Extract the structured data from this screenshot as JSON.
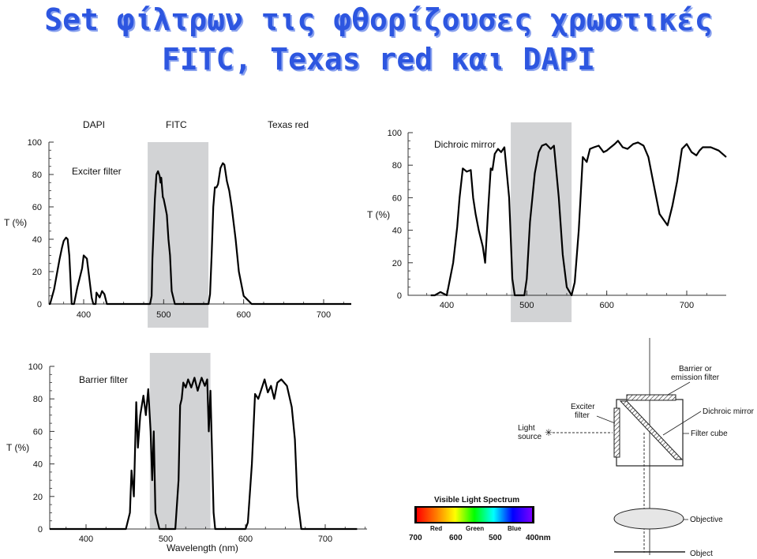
{
  "title_line1": "Set φίλτρων τις φθορίζουσες χρωστικές",
  "title_line2": "FITC, Texas red και DAPI",
  "chart_data": [
    {
      "type": "line",
      "panel": "exciter",
      "dyes": [
        "DAPI",
        "FITC",
        "Texas red"
      ],
      "series_label": "Exciter filter",
      "ylabel": "T (%)",
      "y_ticks": [
        "100",
        "80",
        "60",
        "40",
        "20",
        "0"
      ],
      "x_ticks": [
        "400",
        "500",
        "600",
        "700"
      ],
      "xlim": [
        360,
        740
      ],
      "ylim": [
        0,
        100
      ],
      "shaded_band": [
        480,
        556
      ],
      "series": [
        {
          "x": [
            350,
            358,
            363,
            367,
            370,
            373,
            375,
            378,
            380,
            382,
            385,
            386,
            388,
            392,
            398,
            400,
            404,
            410,
            412,
            415,
            416,
            420,
            423,
            426,
            429,
            432,
            435,
            440,
            444,
            448,
            454,
            460,
            466,
            472,
            478,
            483,
            485,
            486,
            489,
            491,
            493,
            495,
            496,
            497,
            499,
            500,
            502,
            504,
            506,
            508,
            510,
            514,
            520,
            530,
            540,
            550,
            556,
            558,
            560,
            562,
            564,
            566,
            568,
            571,
            574,
            576,
            579,
            582,
            585,
            590,
            594,
            600,
            610,
            640,
            680,
            740
          ],
          "y": [
            0,
            0,
            9,
            20,
            28,
            35,
            39,
            41,
            40,
            30,
            0,
            0,
            0,
            10,
            22,
            30,
            28,
            4,
            0,
            0,
            7,
            4,
            8,
            6,
            0,
            0,
            0,
            0,
            0,
            0,
            0,
            0,
            0,
            0,
            0,
            0,
            5,
            28,
            65,
            80,
            82,
            79,
            75,
            78,
            66,
            65,
            60,
            55,
            40,
            30,
            8,
            0,
            0,
            0,
            0,
            0,
            0,
            6,
            30,
            60,
            72,
            72,
            74,
            84,
            87,
            86,
            76,
            70,
            60,
            40,
            20,
            5,
            0,
            0,
            0,
            0
          ]
        }
      ]
    },
    {
      "type": "line",
      "panel": "dichroic",
      "series_label": "Dichroic mirror",
      "ylabel": "T (%)",
      "y_ticks": [
        "100",
        "80",
        "60",
        "40",
        "20",
        "0"
      ],
      "x_ticks": [
        "400",
        "500",
        "600",
        "700"
      ],
      "xlim": [
        355,
        750
      ],
      "ylim": [
        0,
        100
      ],
      "shaded_band": [
        480,
        556
      ],
      "series": [
        {
          "x": [
            380,
            385,
            392,
            400,
            408,
            413,
            416,
            420,
            425,
            430,
            433,
            436,
            440,
            445,
            448,
            452,
            455,
            457,
            460,
            464,
            468,
            472,
            478,
            482,
            485,
            490,
            494,
            497,
            500,
            504,
            510,
            515,
            519,
            524,
            530,
            534,
            540,
            545,
            550,
            556,
            560,
            565,
            570,
            575,
            579,
            584,
            590,
            596,
            600,
            605,
            610,
            614,
            620,
            626,
            633,
            639,
            646,
            652,
            658,
            666,
            676,
            682,
            688,
            694,
            700,
            706,
            712,
            716,
            720,
            730,
            740,
            750
          ],
          "y": [
            0,
            0,
            2,
            0,
            20,
            42,
            60,
            78,
            76,
            77,
            60,
            50,
            40,
            30,
            20,
            55,
            78,
            77,
            87,
            90,
            88,
            91,
            60,
            10,
            0,
            0,
            0,
            0,
            10,
            45,
            75,
            88,
            92,
            93,
            90,
            92,
            60,
            25,
            5,
            0,
            8,
            40,
            85,
            82,
            90,
            91,
            92,
            88,
            89,
            91,
            93,
            95,
            91,
            90,
            93,
            94,
            92,
            85,
            70,
            50,
            43,
            55,
            70,
            90,
            93,
            88,
            86,
            89,
            91,
            91,
            89,
            85
          ]
        }
      ]
    },
    {
      "type": "line",
      "panel": "barrier",
      "series_label": "Barrier filter",
      "ylabel": "T (%)",
      "xlabel": "Wavelength (nm)",
      "y_ticks": [
        "100",
        "80",
        "60",
        "40",
        "20",
        "0"
      ],
      "x_ticks": [
        "400",
        "500",
        "600",
        "700"
      ],
      "xlim": [
        355,
        740
      ],
      "ylim": [
        0,
        100
      ],
      "shaded_band": [
        480,
        556
      ],
      "series": [
        {
          "x": [
            350,
            405,
            450,
            455,
            457,
            460,
            463,
            465,
            468,
            472,
            475,
            478,
            481,
            483,
            485,
            487,
            492,
            500,
            505,
            512,
            516,
            518,
            520,
            522,
            525,
            528,
            532,
            536,
            540,
            545,
            549,
            552,
            554,
            556,
            560,
            562,
            565,
            568,
            572,
            580,
            595,
            600,
            603,
            608,
            612,
            616,
            620,
            624,
            628,
            632,
            636,
            640,
            645,
            652,
            658,
            662,
            665,
            670,
            690,
            720,
            740
          ],
          "y": [
            0,
            0,
            0,
            10,
            36,
            20,
            78,
            50,
            70,
            82,
            70,
            86,
            60,
            30,
            60,
            10,
            0,
            0,
            0,
            0,
            30,
            76,
            80,
            90,
            87,
            92,
            87,
            93,
            85,
            93,
            88,
            92,
            60,
            85,
            10,
            0,
            0,
            0,
            0,
            0,
            0,
            0,
            4,
            40,
            83,
            80,
            86,
            92,
            84,
            88,
            80,
            90,
            92,
            88,
            75,
            55,
            20,
            0,
            0,
            0,
            0
          ]
        }
      ]
    }
  ],
  "diagram": {
    "labels": {
      "barrier": "Barrier or\nemission filter",
      "exciter": "Exciter\nfilter",
      "light_source": "Light\nsource",
      "dichroic": "Dichroic mirror",
      "filter_cube": "Filter cube",
      "objective": "Objective",
      "object": "Object"
    }
  },
  "spectrum": {
    "title": "Visible Light Spectrum",
    "color_labels": [
      "Red",
      "Green",
      "Blue"
    ],
    "nm_labels": [
      "700",
      "600",
      "500",
      "400nm"
    ],
    "colors": [
      "#ff0000",
      "#ff7a00",
      "#ffff00",
      "#00ff00",
      "#00ffff",
      "#0000ff",
      "#7a00ff"
    ]
  }
}
